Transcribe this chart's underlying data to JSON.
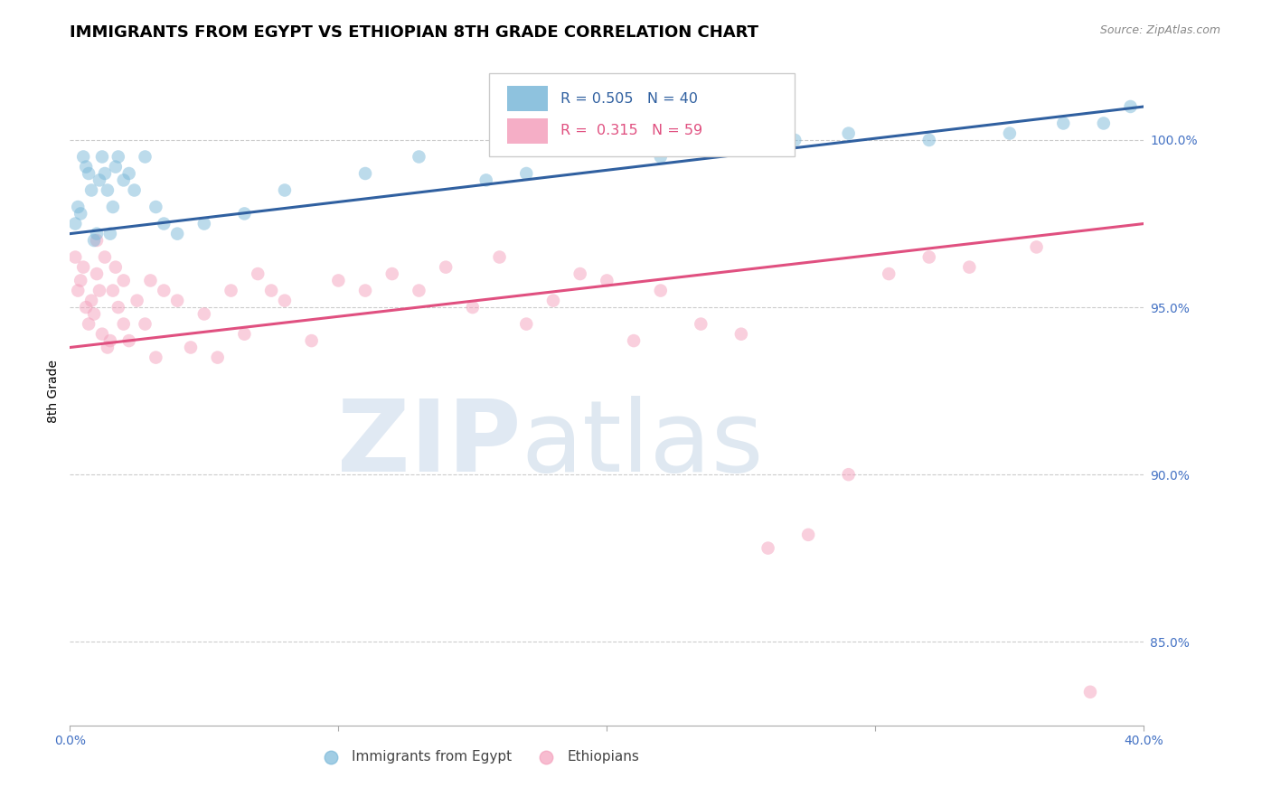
{
  "title": "IMMIGRANTS FROM EGYPT VS ETHIOPIAN 8TH GRADE CORRELATION CHART",
  "source": "Source: ZipAtlas.com",
  "ylabel": "8th Grade",
  "xlim": [
    0.0,
    40.0
  ],
  "ylim": [
    82.5,
    102.5
  ],
  "yticks": [
    85.0,
    90.0,
    95.0,
    100.0
  ],
  "xticks": [
    0.0,
    10.0,
    20.0,
    30.0,
    40.0
  ],
  "ytick_labels": [
    "85.0%",
    "90.0%",
    "95.0%",
    "100.0%"
  ],
  "blue_R": 0.505,
  "blue_N": 40,
  "pink_R": 0.315,
  "pink_N": 59,
  "blue_color": "#7ab8d9",
  "pink_color": "#f4a0bc",
  "blue_line_color": "#3060a0",
  "pink_line_color": "#e05080",
  "legend_blue_label": "Immigrants from Egypt",
  "legend_pink_label": "Ethiopians",
  "blue_x": [
    0.2,
    0.3,
    0.4,
    0.5,
    0.6,
    0.7,
    0.8,
    0.9,
    1.0,
    1.1,
    1.2,
    1.3,
    1.4,
    1.5,
    1.6,
    1.7,
    1.8,
    2.0,
    2.2,
    2.4,
    2.8,
    3.2,
    3.5,
    4.0,
    5.0,
    6.5,
    8.0,
    11.0,
    13.0,
    15.5,
    17.0,
    22.0,
    24.0,
    27.0,
    29.0,
    32.0,
    35.0,
    37.0,
    38.5,
    39.5
  ],
  "blue_y": [
    97.5,
    98.0,
    97.8,
    99.5,
    99.2,
    99.0,
    98.5,
    97.0,
    97.2,
    98.8,
    99.5,
    99.0,
    98.5,
    97.2,
    98.0,
    99.2,
    99.5,
    98.8,
    99.0,
    98.5,
    99.5,
    98.0,
    97.5,
    97.2,
    97.5,
    97.8,
    98.5,
    99.0,
    99.5,
    98.8,
    99.0,
    99.5,
    99.8,
    100.0,
    100.2,
    100.0,
    100.2,
    100.5,
    100.5,
    101.0
  ],
  "pink_x": [
    0.2,
    0.3,
    0.4,
    0.5,
    0.6,
    0.7,
    0.8,
    0.9,
    1.0,
    1.0,
    1.1,
    1.2,
    1.3,
    1.4,
    1.5,
    1.6,
    1.7,
    1.8,
    2.0,
    2.0,
    2.2,
    2.5,
    2.8,
    3.0,
    3.2,
    3.5,
    4.0,
    4.5,
    5.0,
    5.5,
    6.0,
    6.5,
    7.0,
    7.5,
    8.0,
    9.0,
    10.0,
    11.0,
    12.0,
    13.0,
    14.0,
    15.0,
    16.0,
    17.0,
    18.0,
    19.0,
    20.0,
    21.0,
    22.0,
    23.5,
    25.0,
    26.0,
    27.5,
    29.0,
    30.5,
    32.0,
    33.5,
    36.0,
    38.0
  ],
  "pink_y": [
    96.5,
    95.5,
    95.8,
    96.2,
    95.0,
    94.5,
    95.2,
    94.8,
    96.0,
    97.0,
    95.5,
    94.2,
    96.5,
    93.8,
    94.0,
    95.5,
    96.2,
    95.0,
    95.8,
    94.5,
    94.0,
    95.2,
    94.5,
    95.8,
    93.5,
    95.5,
    95.2,
    93.8,
    94.8,
    93.5,
    95.5,
    94.2,
    96.0,
    95.5,
    95.2,
    94.0,
    95.8,
    95.5,
    96.0,
    95.5,
    96.2,
    95.0,
    96.5,
    94.5,
    95.2,
    96.0,
    95.8,
    94.0,
    95.5,
    94.5,
    94.2,
    87.8,
    88.2,
    90.0,
    96.0,
    96.5,
    96.2,
    96.8,
    83.5
  ],
  "blue_line_x0": 0.0,
  "blue_line_y0": 97.2,
  "blue_line_x1": 40.0,
  "blue_line_y1": 101.0,
  "pink_line_x0": 0.0,
  "pink_line_y0": 93.8,
  "pink_line_x1": 40.0,
  "pink_line_y1": 97.5,
  "watermark_zip": "ZIP",
  "watermark_atlas": "atlas",
  "marker_size": 110,
  "alpha": 0.5,
  "grid_color": "#cccccc",
  "background_color": "#ffffff",
  "title_fontsize": 13,
  "tick_label_color": "#4472c4",
  "tick_fontsize": 10,
  "legend_fontsize": 11,
  "source_color": "#888888"
}
